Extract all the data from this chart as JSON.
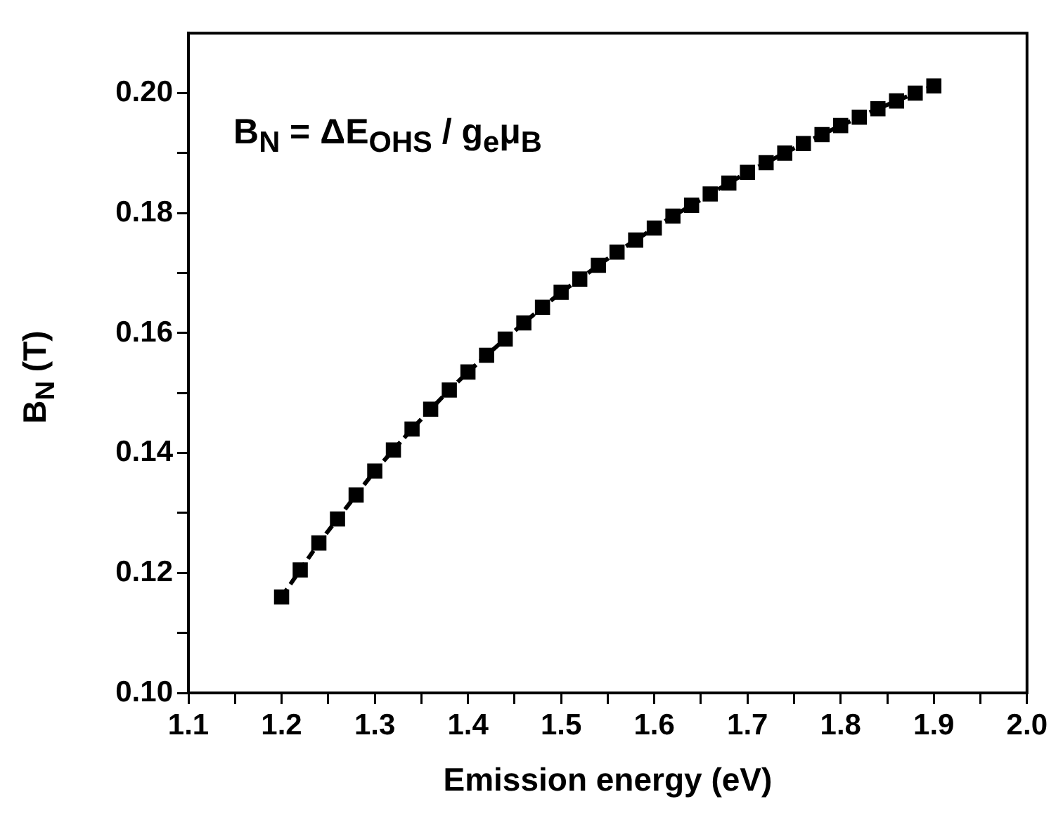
{
  "chart_data": {
    "type": "line",
    "xlabel": "Emission energy (eV)",
    "ylabel": "B$_{N}$ (T)",
    "annotations": [
      "B$_{N}$ = ΔE$_{OHS}$ / g$_{e}$μ$_{B}$"
    ],
    "xlim": [
      1.1,
      2.0
    ],
    "xticks": [
      1.1,
      {
        "value": 1.15,
        "label": null
      },
      1.2,
      {
        "value": 1.25,
        "label": null
      },
      1.3,
      {
        "value": 1.35,
        "label": null
      },
      1.4,
      {
        "value": 1.45,
        "label": null
      },
      1.5,
      {
        "value": 1.55,
        "label": null
      },
      1.6,
      {
        "value": 1.65,
        "label": null
      },
      1.7,
      {
        "value": 1.75,
        "label": null
      },
      1.8,
      {
        "value": 1.85,
        "label": null
      },
      1.9,
      {
        "value": 1.95,
        "label": null
      },
      {
        "value": 2.0,
        "label": "2.0"
      }
    ],
    "ylim": [
      0.1,
      0.21
    ],
    "yticks": [
      {
        "value": 0.1,
        "label": "0.10"
      },
      {
        "value": 0.11,
        "label": null
      },
      {
        "value": 0.12,
        "label": "0.12"
      },
      {
        "value": 0.13,
        "label": null
      },
      {
        "value": 0.14,
        "label": "0.14"
      },
      {
        "value": 0.15,
        "label": null
      },
      {
        "value": 0.16,
        "label": "0.16"
      },
      {
        "value": 0.17,
        "label": null
      },
      {
        "value": 0.18,
        "label": "0.18"
      },
      {
        "value": 0.19,
        "label": null
      },
      {
        "value": 0.2,
        "label": "0.20"
      }
    ],
    "grid": false,
    "legend": false,
    "marker": "square",
    "line_style": "dashed",
    "x": [
      1.2,
      1.22,
      1.24,
      1.26,
      1.28,
      1.3,
      1.32,
      1.34,
      1.36,
      1.38,
      1.4,
      1.42,
      1.44,
      1.46,
      1.48,
      1.5,
      1.52,
      1.54,
      1.56,
      1.58,
      1.6,
      1.62,
      1.64,
      1.66,
      1.68,
      1.7,
      1.72,
      1.74,
      1.76,
      1.78,
      1.8,
      1.82,
      1.84,
      1.86,
      1.88,
      1.9
    ],
    "series": [
      {
        "color": "#000000",
        "values": [
          0.116,
          0.1205,
          0.125,
          0.129,
          0.133,
          0.137,
          0.1405,
          0.144,
          0.1473,
          0.1505,
          0.1535,
          0.1563,
          0.159,
          0.1617,
          0.1643,
          0.1668,
          0.169,
          0.1713,
          0.1735,
          0.1755,
          0.1775,
          0.1795,
          0.1813,
          0.1832,
          0.185,
          0.1868,
          0.1884,
          0.19,
          0.1916,
          0.1931,
          0.1946,
          0.196,
          0.1974,
          0.1987,
          0.2,
          0.2012
        ]
      }
    ]
  }
}
